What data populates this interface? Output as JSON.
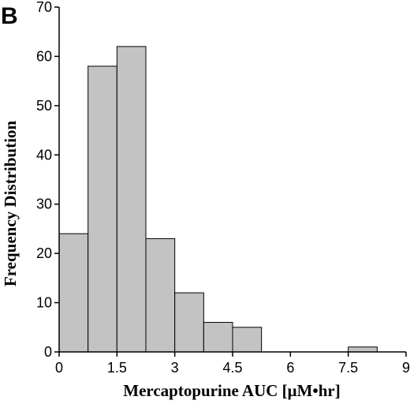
{
  "panel_label": "B",
  "chart_data": {
    "type": "bar",
    "title": "",
    "xlabel": "Mercaptopurine AUC [μM•hr]",
    "ylabel": "Frequency Distribution",
    "xlim": [
      0,
      9
    ],
    "ylim": [
      0,
      70
    ],
    "xticks": [
      0,
      1.5,
      3,
      4.5,
      6,
      7.5,
      9
    ],
    "xtick_labels": [
      "0",
      "1.5",
      "3",
      "4.5",
      "6",
      "7.5",
      "9"
    ],
    "yticks": [
      0,
      10,
      20,
      30,
      40,
      50,
      60,
      70
    ],
    "ytick_labels": [
      "0",
      "10",
      "20",
      "30",
      "40",
      "50",
      "60",
      "70"
    ],
    "bins": [
      {
        "x0": 0.0,
        "x1": 0.75,
        "value": 24
      },
      {
        "x0": 0.75,
        "x1": 1.5,
        "value": 58
      },
      {
        "x0": 1.5,
        "x1": 2.25,
        "value": 62
      },
      {
        "x0": 2.25,
        "x1": 3.0,
        "value": 23
      },
      {
        "x0": 3.0,
        "x1": 3.75,
        "value": 12
      },
      {
        "x0": 3.75,
        "x1": 4.5,
        "value": 6
      },
      {
        "x0": 4.5,
        "x1": 5.25,
        "value": 5
      },
      {
        "x0": 7.5,
        "x1": 8.25,
        "value": 1
      }
    ],
    "grid": false,
    "bar_color": "#c3c3c3"
  }
}
